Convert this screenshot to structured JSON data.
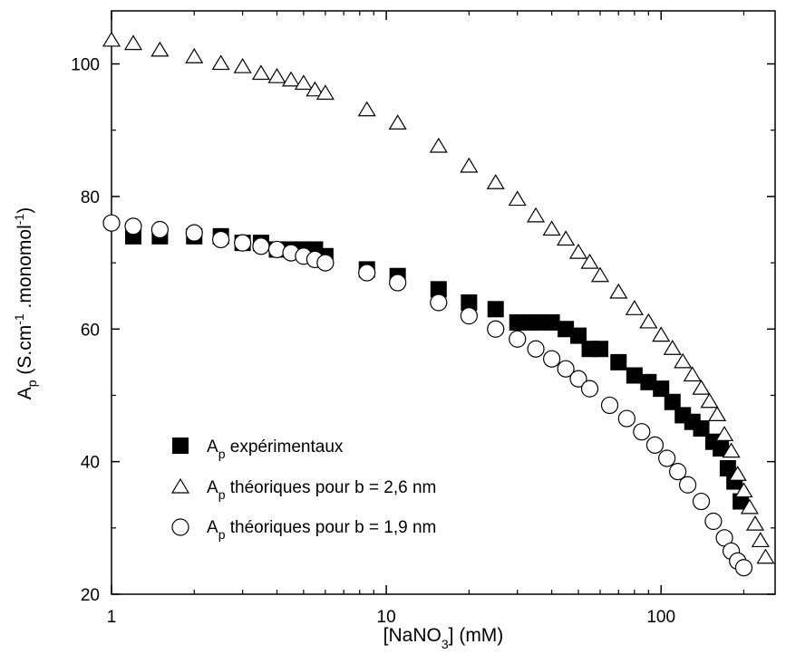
{
  "chart_data": {
    "type": "scatter",
    "xlabel": {
      "main": "[NaNO",
      "sub": "3",
      "rest": "] (mM)"
    },
    "ylabel": {
      "main": "A",
      "sub": "p",
      "part1": " (S.cm",
      "sup1": "-1",
      "part2": " .monomol",
      "sup2": "-1",
      "part3": ")"
    },
    "x_scale": "log",
    "xlim": [
      1,
      260
    ],
    "ylim": [
      20,
      108
    ],
    "x_ticks": [
      {
        "value": 1,
        "label": "1"
      },
      {
        "value": 10,
        "label": "10"
      },
      {
        "value": 100,
        "label": "100"
      }
    ],
    "y_ticks": [
      {
        "value": 20,
        "label": "20"
      },
      {
        "value": 40,
        "label": "40"
      },
      {
        "value": 60,
        "label": "60"
      },
      {
        "value": 80,
        "label": "80"
      },
      {
        "value": 100,
        "label": "100"
      }
    ],
    "grid": false,
    "legend": {
      "placement": "bottom-left"
    },
    "series": [
      {
        "marker": "filled-square",
        "legend": {
          "main": "A",
          "sub": "p",
          "rest": " expérimentaux"
        },
        "x": [
          1.2,
          1.5,
          2.0,
          2.5,
          3.0,
          3.5,
          4.0,
          4.5,
          5.0,
          5.5,
          6.0,
          8.5,
          11,
          15.5,
          20,
          25,
          30,
          33,
          36,
          40,
          45,
          50,
          55,
          60,
          70,
          80,
          90,
          100,
          110,
          120,
          130,
          140,
          155,
          165,
          175,
          185,
          195
        ],
        "y": [
          74,
          74,
          74,
          74,
          73,
          73,
          72,
          72,
          72,
          72,
          71,
          69,
          68,
          66,
          64,
          63,
          61,
          61,
          61,
          61,
          60,
          59,
          57,
          57,
          55,
          53,
          52,
          51,
          49,
          47,
          46,
          45,
          43,
          42,
          39,
          37,
          34
        ]
      },
      {
        "marker": "open-triangle",
        "legend": {
          "main": "A",
          "sub": "p",
          "rest": " théoriques pour b = 2,6 nm"
        },
        "x": [
          1.0,
          1.2,
          1.5,
          2.0,
          2.5,
          3.0,
          3.5,
          4.0,
          4.5,
          5.0,
          5.5,
          6.0,
          8.5,
          11,
          15.5,
          20,
          25,
          30,
          35,
          40,
          45,
          50,
          55,
          60,
          70,
          80,
          90,
          100,
          110,
          120,
          130,
          140,
          150,
          160,
          170,
          180,
          190,
          200,
          210,
          220,
          230,
          240
        ],
        "y": [
          103.5,
          103,
          102,
          101,
          100,
          99.5,
          98.5,
          98,
          97.5,
          97,
          96,
          95.5,
          93,
          91,
          87.5,
          84.5,
          82,
          79.5,
          77,
          75,
          73.5,
          71.5,
          70,
          68,
          65.5,
          63,
          61,
          59,
          57,
          55,
          53,
          51,
          49,
          47,
          44,
          41.5,
          38,
          35.5,
          33,
          30.5,
          28,
          25.5
        ]
      },
      {
        "marker": "open-circle",
        "legend": {
          "main": "A",
          "sub": "p",
          "rest": " théoriques pour b = 1,9 nm"
        },
        "x": [
          1.0,
          1.2,
          1.5,
          2.0,
          2.5,
          3.0,
          3.5,
          4.0,
          4.5,
          5.0,
          5.5,
          6.0,
          8.5,
          11,
          15.5,
          20,
          25,
          30,
          35,
          40,
          45,
          50,
          55,
          65,
          75,
          85,
          95,
          105,
          115,
          125,
          140,
          155,
          170,
          180,
          190,
          200
        ],
        "y": [
          76,
          75.5,
          75,
          74.5,
          73.5,
          73,
          72.5,
          72,
          71.5,
          71,
          70.5,
          70,
          68.5,
          67,
          64,
          62,
          60,
          58.5,
          57,
          55.5,
          54,
          52.5,
          51,
          48.5,
          46.5,
          44.5,
          42.5,
          40.5,
          38.5,
          36.5,
          34,
          31,
          28.5,
          26.5,
          25,
          24
        ]
      }
    ]
  }
}
